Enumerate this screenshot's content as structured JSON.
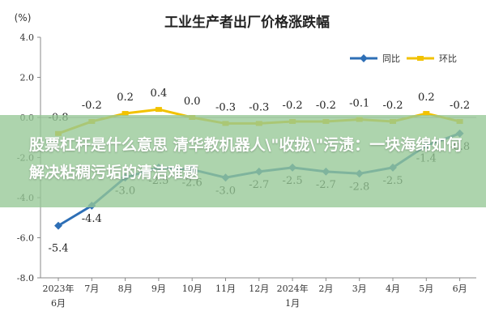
{
  "chart_data": {
    "type": "line",
    "title": "工业生产者出厂价格涨跌幅",
    "unit_label": "(%)",
    "categories": [
      {
        "line1": "2023年",
        "line2": "6月"
      },
      {
        "line1": "7月",
        "line2": ""
      },
      {
        "line1": "8月",
        "line2": ""
      },
      {
        "line1": "9月",
        "line2": ""
      },
      {
        "line1": "10月",
        "line2": ""
      },
      {
        "line1": "11月",
        "line2": ""
      },
      {
        "line1": "12月",
        "line2": ""
      },
      {
        "line1": "2024年",
        "line2": "1月"
      },
      {
        "line1": "2月",
        "line2": ""
      },
      {
        "line1": "3月",
        "line2": ""
      },
      {
        "line1": "4月",
        "line2": ""
      },
      {
        "line1": "5月",
        "line2": ""
      },
      {
        "line1": "6月",
        "line2": ""
      }
    ],
    "series": [
      {
        "name": "同比",
        "color": "#2e6fb6",
        "values": [
          -5.4,
          -4.4,
          -3.0,
          -2.5,
          -2.6,
          -3.0,
          -2.7,
          -2.5,
          -2.7,
          -2.8,
          -2.5,
          -1.4,
          -0.8
        ],
        "labels": [
          "-5.4",
          "-4.4",
          "-3.0",
          "-2.5",
          "-2.6",
          "-3.0",
          "-2.7",
          "-2.5",
          "-2.7",
          "-2.8",
          "-2.5",
          "-1.4",
          "-0.8"
        ]
      },
      {
        "name": "环比",
        "color": "#f2c200",
        "values": [
          -0.8,
          -0.2,
          0.2,
          0.4,
          0.0,
          -0.3,
          -0.3,
          -0.2,
          -0.2,
          -0.1,
          -0.2,
          0.2,
          -0.2
        ],
        "labels": [
          "-0.8",
          "-0.2",
          "0.2",
          "0.4",
          "0.0",
          "-0.3",
          "-0.3",
          "-0.2",
          "-0.2",
          "-0.1",
          "-0.2",
          "0.2",
          "-0.2"
        ]
      }
    ],
    "yticks": [
      "4.0",
      "2.0",
      "0.0",
      "-2.0",
      "-4.0",
      "-6.0",
      "-8.0"
    ],
    "ylim": [
      -8,
      4
    ],
    "grid": false,
    "legend": "top-right"
  },
  "overlay": {
    "text": "股票杠杆是什么意思 清华教机器人\\\"收拢\\\"污渍：一块海绵如何解决粘稠污垢的清洁难题"
  }
}
